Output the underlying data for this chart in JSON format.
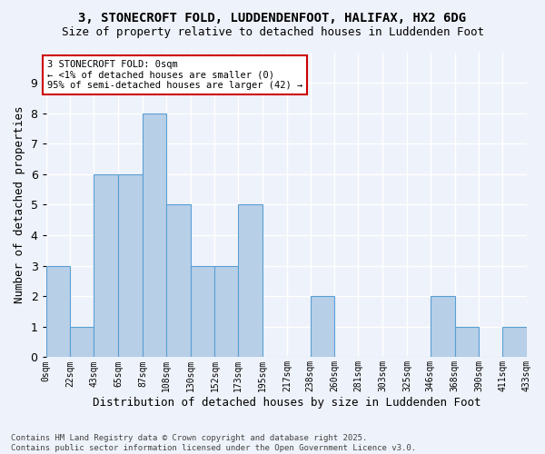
{
  "title1": "3, STONECROFT FOLD, LUDDENDENFOOT, HALIFAX, HX2 6DG",
  "title2": "Size of property relative to detached houses in Luddenden Foot",
  "xlabel": "Distribution of detached houses by size in Luddenden Foot",
  "ylabel": "Number of detached properties",
  "bin_edges": [
    0,
    22,
    43,
    65,
    87,
    108,
    130,
    152,
    173,
    195,
    217,
    238,
    260,
    281,
    303,
    325,
    346,
    368,
    390,
    411,
    433
  ],
  "bin_edge_labels": [
    "0sqm",
    "22sqm",
    "43sqm",
    "65sqm",
    "87sqm",
    "108sqm",
    "130sqm",
    "152sqm",
    "173sqm",
    "195sqm",
    "217sqm",
    "238sqm",
    "260sqm",
    "281sqm",
    "303sqm",
    "325sqm",
    "346sqm",
    "368sqm",
    "390sqm",
    "411sqm",
    "433sqm"
  ],
  "values": [
    3,
    1,
    6,
    6,
    8,
    5,
    3,
    3,
    5,
    0,
    0,
    2,
    0,
    0,
    0,
    0,
    2,
    1,
    0,
    1
  ],
  "bar_color": "#b8cfe8",
  "bar_edge_color": "#5a9fd4",
  "background_color": "#eef2fa",
  "grid_color": "#ffffff",
  "annotation_text": "3 STONECROFT FOLD: 0sqm\n← <1% of detached houses are smaller (0)\n95% of semi-detached houses are larger (42) →",
  "annotation_box_color": "#ffffff",
  "annotation_box_edge": "#cc0000",
  "ylim": [
    0,
    10
  ],
  "yticks": [
    0,
    1,
    2,
    3,
    4,
    5,
    6,
    7,
    8,
    9,
    10
  ],
  "footnote": "Contains HM Land Registry data © Crown copyright and database right 2025.\nContains public sector information licensed under the Open Government Licence v3.0."
}
